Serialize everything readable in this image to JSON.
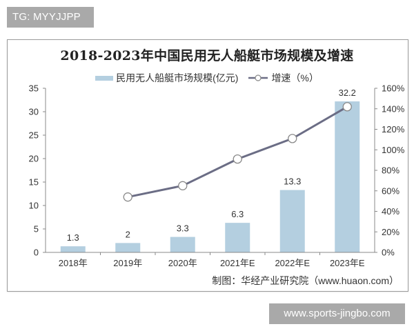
{
  "watermarks": {
    "top": "TG: MYYJJPP",
    "bottom": "www.sports-jingbo.com"
  },
  "source": "制图：华经产业研究院（www.huaon.com）",
  "legend": {
    "bar_label": "民用无人船艇市场规模(亿元)",
    "line_label": "增速（%）"
  },
  "colors": {
    "bar": "#b4cfe0",
    "line": "#6b6d85",
    "axis": "#888888",
    "frame": "#9a9a9a",
    "watermark_bg": "#a9a9a9"
  },
  "chart_data": {
    "type": "bar+line",
    "title": "2018-2023年中国民用无人船艇市场规模及增速",
    "categories": [
      "2018年",
      "2019年",
      "2020年",
      "2021年E",
      "2022年E",
      "2023年E"
    ],
    "series": [
      {
        "name": "民用无人船艇市场规模(亿元)",
        "type": "bar",
        "axis": "left",
        "values": [
          1.3,
          2,
          3.3,
          6.3,
          13.3,
          32.2
        ],
        "data_labels": [
          "1.3",
          "2",
          "3.3",
          "6.3",
          "13.3",
          "32.2"
        ]
      },
      {
        "name": "增速（%）",
        "type": "line",
        "axis": "right",
        "values": [
          null,
          54,
          65,
          91,
          111,
          142
        ]
      }
    ],
    "left_axis": {
      "ylim": [
        0,
        35
      ],
      "ticks": [
        0,
        5,
        10,
        15,
        20,
        25,
        30,
        35
      ]
    },
    "right_axis": {
      "ylim": [
        0,
        160
      ],
      "ticks": [
        "0%",
        "20%",
        "40%",
        "60%",
        "80%",
        "100%",
        "120%",
        "140%",
        "160%"
      ]
    },
    "xlabel": "",
    "ylabel": "",
    "grid": false,
    "legend_position": "top"
  }
}
